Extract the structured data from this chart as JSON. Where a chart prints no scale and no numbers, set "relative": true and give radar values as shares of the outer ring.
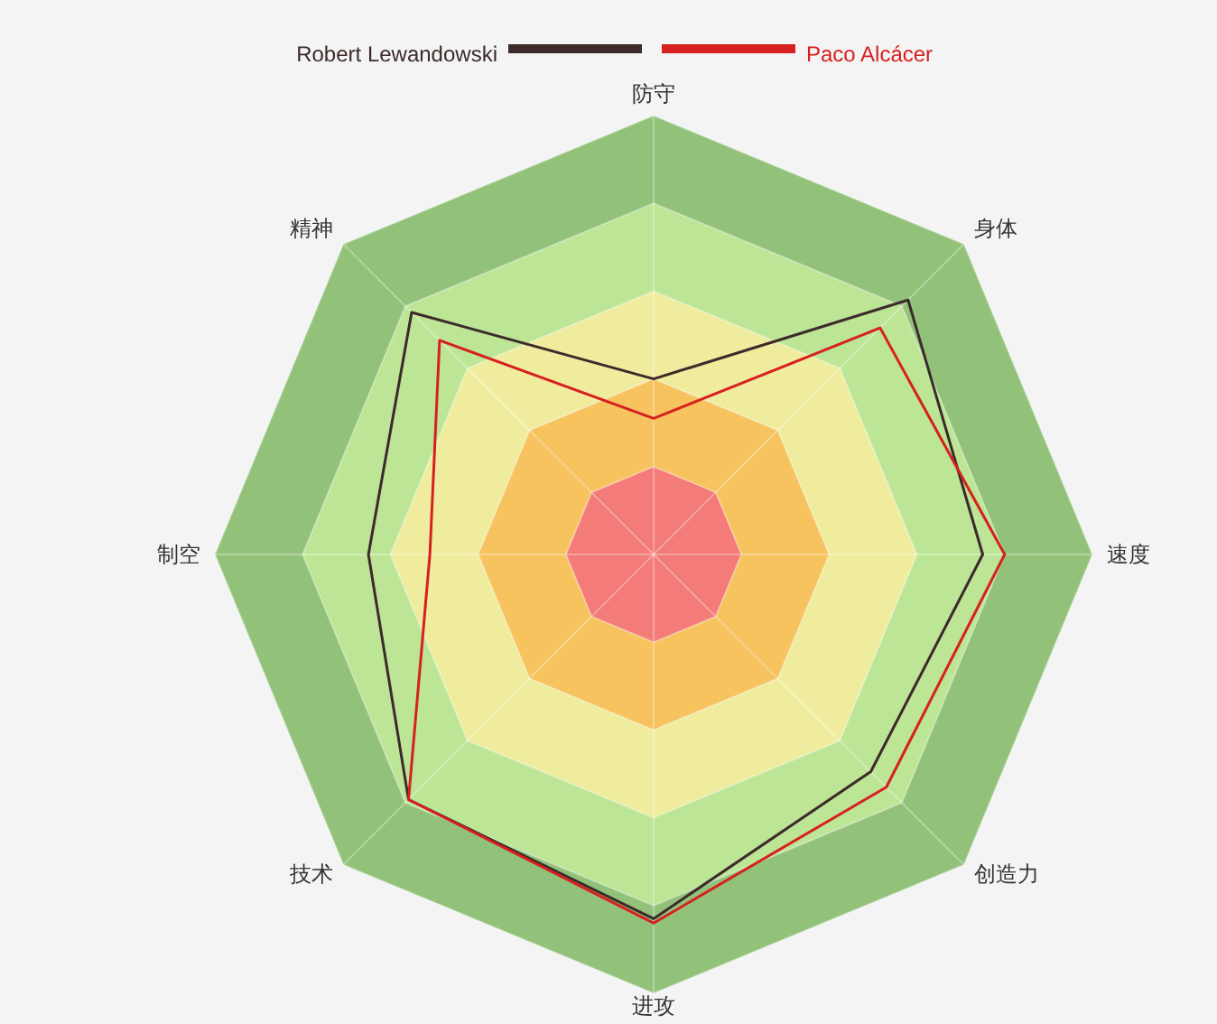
{
  "chart_data": {
    "type": "radar",
    "categories": [
      "防守",
      "身体",
      "速度",
      "创造力",
      "进攻",
      "技术",
      "制空",
      "精神"
    ],
    "series": [
      {
        "name": "Robert Lewandowski",
        "color": "#3d2a2a",
        "values": [
          0.4,
          0.82,
          0.75,
          0.7,
          0.83,
          0.79,
          0.65,
          0.78
        ]
      },
      {
        "name": "Paco Alcácer",
        "color": "#d7201f",
        "values": [
          0.31,
          0.73,
          0.8,
          0.75,
          0.84,
          0.79,
          0.51,
          0.69
        ]
      }
    ],
    "relative": true,
    "grid": true,
    "legend": "top"
  }
}
